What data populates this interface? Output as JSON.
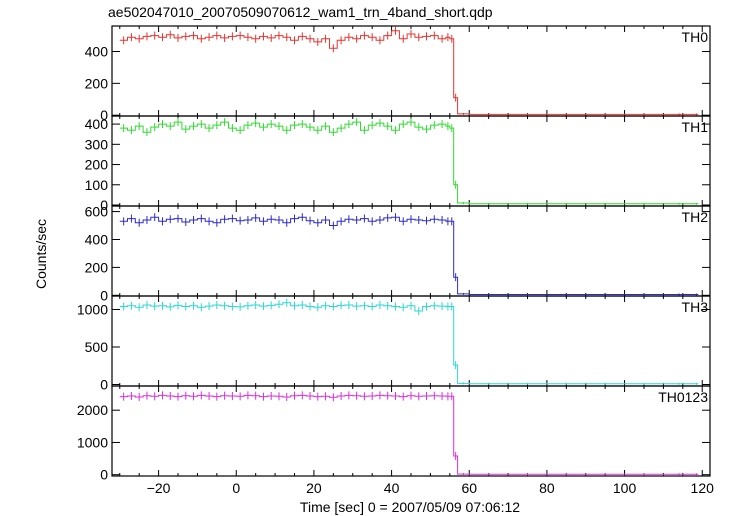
{
  "title": "ae502047010_20070509070612_wam1_trn_4band_short.qdp",
  "chart_data": {
    "type": "line",
    "title": "ae502047010_20070509070612_wam1_trn_4band_short.qdp",
    "xlabel": "Time [sec] 0 = 2007/05/09 07:06:12",
    "ylabel": "Counts/sec",
    "xlim": [
      -32,
      122
    ],
    "x_ticks": [
      -20,
      0,
      20,
      40,
      60,
      80,
      100,
      120
    ],
    "grid": false,
    "panels": [
      {
        "name": "TH0",
        "color": "#e8332f",
        "ylim": [
          -5,
          560
        ],
        "y_ticks": [
          0,
          200,
          400
        ],
        "x": [
          -30,
          -28,
          -26,
          -24,
          -22,
          -20,
          -18,
          -16,
          -14,
          -12,
          -10,
          -8,
          -6,
          -4,
          -2,
          0,
          2,
          4,
          6,
          8,
          10,
          12,
          14,
          16,
          18,
          20,
          22,
          24,
          26,
          28,
          30,
          32,
          34,
          36,
          38,
          40,
          42,
          44,
          46,
          48,
          50,
          52,
          54,
          55,
          56,
          57,
          60,
          70,
          80,
          90,
          100,
          110,
          118
        ],
        "y": [
          470,
          490,
          480,
          495,
          500,
          490,
          505,
          485,
          495,
          500,
          480,
          490,
          500,
          485,
          495,
          500,
          490,
          480,
          495,
          485,
          500,
          490,
          470,
          495,
          480,
          460,
          480,
          420,
          470,
          490,
          480,
          500,
          490,
          470,
          500,
          530,
          480,
          510,
          490,
          495,
          500,
          480,
          490,
          480,
          110,
          8,
          5,
          5,
          5,
          5,
          5,
          5,
          5
        ]
      },
      {
        "name": "TH1",
        "color": "#2edc2e",
        "ylim": [
          -5,
          440
        ],
        "y_ticks": [
          0,
          100,
          200,
          300,
          400
        ],
        "x": [
          -30,
          -28,
          -26,
          -24,
          -22,
          -20,
          -18,
          -16,
          -14,
          -12,
          -10,
          -8,
          -6,
          -4,
          -2,
          0,
          2,
          4,
          6,
          8,
          10,
          12,
          14,
          16,
          18,
          20,
          22,
          24,
          26,
          28,
          30,
          32,
          34,
          36,
          38,
          40,
          42,
          44,
          46,
          48,
          50,
          52,
          54,
          55,
          56,
          57,
          60,
          70,
          80,
          90,
          100,
          110,
          118
        ],
        "y": [
          380,
          370,
          390,
          360,
          385,
          400,
          390,
          410,
          375,
          390,
          400,
          380,
          395,
          410,
          380,
          370,
          395,
          405,
          385,
          400,
          390,
          370,
          395,
          400,
          385,
          370,
          390,
          360,
          380,
          400,
          410,
          370,
          395,
          405,
          390,
          370,
          400,
          410,
          385,
          375,
          395,
          400,
          390,
          380,
          100,
          10,
          6,
          6,
          6,
          6,
          6,
          6,
          6
        ]
      },
      {
        "name": "TH2",
        "color": "#2b2bcc",
        "ylim": [
          -5,
          640
        ],
        "y_ticks": [
          0,
          200,
          400,
          600
        ],
        "x": [
          -30,
          -28,
          -26,
          -24,
          -22,
          -20,
          -18,
          -16,
          -14,
          -12,
          -10,
          -8,
          -6,
          -4,
          -2,
          0,
          2,
          4,
          6,
          8,
          10,
          12,
          14,
          16,
          18,
          20,
          22,
          24,
          26,
          28,
          30,
          32,
          34,
          36,
          38,
          40,
          42,
          44,
          46,
          48,
          50,
          52,
          54,
          55,
          56,
          57,
          60,
          70,
          80,
          90,
          100,
          110,
          118
        ],
        "y": [
          530,
          550,
          520,
          540,
          560,
          530,
          545,
          550,
          525,
          540,
          550,
          530,
          520,
          545,
          550,
          535,
          540,
          555,
          530,
          545,
          540,
          520,
          550,
          560,
          535,
          520,
          540,
          500,
          530,
          545,
          540,
          550,
          530,
          540,
          555,
          560,
          530,
          545,
          540,
          535,
          545,
          540,
          530,
          530,
          130,
          10,
          6,
          6,
          6,
          6,
          6,
          6,
          6
        ]
      },
      {
        "name": "TH3",
        "color": "#2ad8d8",
        "ylim": [
          -20,
          1180
        ],
        "y_ticks": [
          0,
          500,
          1000
        ],
        "x": [
          -30,
          -28,
          -26,
          -24,
          -22,
          -20,
          -18,
          -16,
          -14,
          -12,
          -10,
          -8,
          -6,
          -4,
          -2,
          0,
          2,
          4,
          6,
          8,
          10,
          12,
          14,
          16,
          18,
          20,
          22,
          24,
          26,
          28,
          30,
          32,
          34,
          36,
          38,
          40,
          42,
          44,
          46,
          48,
          50,
          52,
          54,
          55,
          56,
          57,
          60,
          70,
          80,
          90,
          100,
          110,
          118
        ],
        "y": [
          1040,
          1050,
          1030,
          1060,
          1045,
          1050,
          1035,
          1055,
          1040,
          1050,
          1030,
          1045,
          1060,
          1050,
          1040,
          1035,
          1050,
          1060,
          1045,
          1055,
          1070,
          1090,
          1050,
          1060,
          1040,
          1030,
          1050,
          1040,
          1055,
          1060,
          1045,
          1050,
          1040,
          1060,
          1050,
          1040,
          1030,
          1050,
          980,
          1040,
          1050,
          1045,
          1040,
          1040,
          260,
          15,
          10,
          10,
          10,
          10,
          10,
          10,
          10
        ]
      },
      {
        "name": "TH0123",
        "color": "#dd2edd",
        "ylim": [
          -40,
          2750
        ],
        "y_ticks": [
          0,
          1000,
          2000
        ],
        "x": [
          -30,
          -28,
          -26,
          -24,
          -22,
          -20,
          -18,
          -16,
          -14,
          -12,
          -10,
          -8,
          -6,
          -4,
          -2,
          0,
          2,
          4,
          6,
          8,
          10,
          12,
          14,
          16,
          18,
          20,
          22,
          24,
          26,
          28,
          30,
          32,
          34,
          36,
          38,
          40,
          42,
          44,
          46,
          48,
          50,
          52,
          54,
          55,
          56,
          57,
          60,
          70,
          80,
          90,
          100,
          110,
          118
        ],
        "y": [
          2420,
          2440,
          2410,
          2450,
          2430,
          2460,
          2440,
          2420,
          2450,
          2430,
          2460,
          2440,
          2420,
          2450,
          2440,
          2430,
          2460,
          2450,
          2420,
          2440,
          2430,
          2410,
          2450,
          2460,
          2440,
          2420,
          2430,
          2400,
          2440,
          2460,
          2450,
          2430,
          2440,
          2460,
          2450,
          2440,
          2420,
          2450,
          2430,
          2440,
          2450,
          2440,
          2430,
          2430,
          580,
          20,
          15,
          15,
          15,
          15,
          15,
          15,
          15
        ]
      }
    ]
  }
}
